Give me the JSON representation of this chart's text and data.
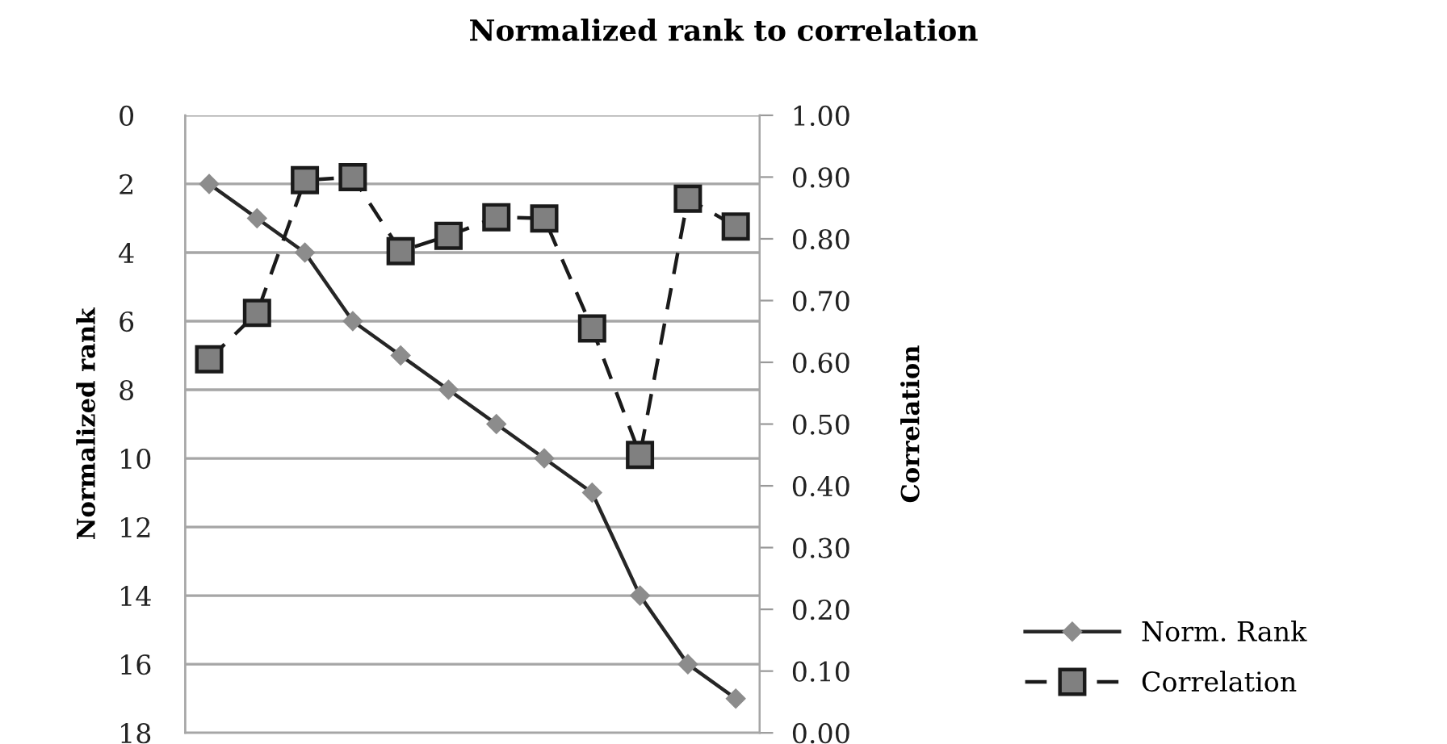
{
  "chart_data": {
    "type": "line",
    "title": "Normalized rank to correlation",
    "ylabel": "Normalized rank",
    "y2label": "Correlation",
    "categories": [
      null,
      null,
      null,
      null,
      null,
      null,
      null,
      null,
      null,
      null,
      null,
      null
    ],
    "series": [
      {
        "name": "Norm. Rank",
        "color": "#262626",
        "marker": "diamond",
        "line_style": "solid",
        "values": [
          2,
          3,
          4,
          6,
          7,
          8,
          9,
          10,
          11,
          14,
          16,
          17
        ]
      },
      {
        "name": "Correlation",
        "color": "#1a1a1a",
        "marker": "square",
        "line_style": "dashed",
        "axis": "y2",
        "values": [
          0.605,
          0.68,
          0.895,
          0.9,
          0.78,
          0.805,
          0.835,
          0.833,
          0.655,
          0.45,
          0.865,
          0.82
        ]
      }
    ],
    "ylim": [
      18,
      0
    ],
    "yticks": [
      0,
      2,
      4,
      6,
      8,
      10,
      12,
      14,
      16,
      18
    ],
    "y2lim": [
      0,
      1
    ],
    "y2ticks": [
      {
        "value": 0,
        "label": "0.00"
      },
      {
        "value": 0.1,
        "label": "0.10"
      },
      {
        "value": 0.2,
        "label": "0.20"
      },
      {
        "value": 0.3,
        "label": "0.30"
      },
      {
        "value": 0.4,
        "label": "0.40"
      },
      {
        "value": 0.5,
        "label": "0.50"
      },
      {
        "value": 0.6,
        "label": "0.60"
      },
      {
        "value": 0.7,
        "label": "0.70"
      },
      {
        "value": 0.8,
        "label": "0.80"
      },
      {
        "value": 0.9,
        "label": "0.90"
      },
      {
        "value": 1,
        "label": "1.00"
      }
    ],
    "grid": "y",
    "legend": "right",
    "tick_labels": "y"
  }
}
